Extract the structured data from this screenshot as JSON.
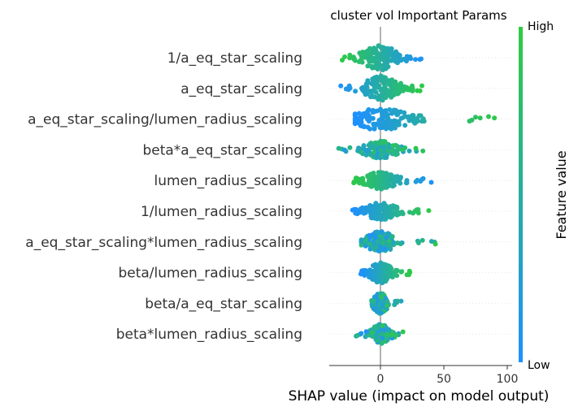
{
  "chart_data": {
    "type": "scatter",
    "subtype": "shap-beeswarm",
    "title": "cluster vol Important Params",
    "xlabel": "SHAP value (impact on model output)",
    "ylabel": "",
    "xlim": [
      -40,
      100
    ],
    "xticks": [
      0,
      50,
      100
    ],
    "xtick_labels": [
      "0",
      "50",
      "100"
    ],
    "grid": false,
    "colorbar": {
      "label": "Feature value",
      "high_label": "High",
      "low_label": "Low",
      "high_color": "#2ecc40",
      "low_color": "#1e90ff"
    },
    "features": [
      {
        "name": "1/a_eq_star_scaling",
        "min": -33,
        "max": 35,
        "spread": 0.36,
        "corr": -1
      },
      {
        "name": "a_eq_star_scaling",
        "min": -33,
        "max": 34,
        "spread": 0.36,
        "corr": 1
      },
      {
        "name": "a_eq_star_scaling/lumen_radius_scaling",
        "min": -20,
        "max": 95,
        "spread": 0.32,
        "corr": 1
      },
      {
        "name": "beta*a_eq_star_scaling",
        "min": -35,
        "max": 34,
        "spread": 0.25,
        "corr": 0.4
      },
      {
        "name": "lumen_radius_scaling",
        "min": -24,
        "max": 42,
        "spread": 0.25,
        "corr": -1
      },
      {
        "name": "1/lumen_radius_scaling",
        "min": -22,
        "max": 40,
        "spread": 0.25,
        "corr": 1
      },
      {
        "name": "a_eq_star_scaling*lumen_radius_scaling",
        "min": -15,
        "max": 44,
        "spread": 0.3,
        "corr": 0.3
      },
      {
        "name": "beta/lumen_radius_scaling",
        "min": -16,
        "max": 25,
        "spread": 0.3,
        "corr": 1
      },
      {
        "name": "beta/a_eq_star_scaling",
        "min": -8,
        "max": 17,
        "spread": 0.3,
        "corr": 0.2
      },
      {
        "name": "beta*lumen_radius_scaling",
        "min": -20,
        "max": 18,
        "spread": 0.28,
        "corr": 0.1
      }
    ]
  }
}
